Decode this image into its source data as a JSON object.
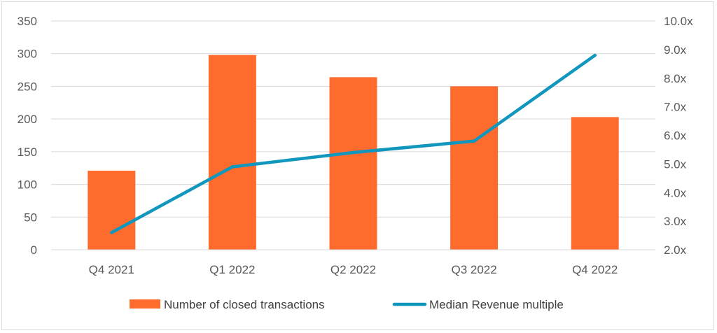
{
  "chart_data": {
    "type": "bar",
    "title": "",
    "xlabel": "",
    "ylabel": "",
    "categories": [
      "Q4 2021",
      "Q1 2022",
      "Q2 2022",
      "Q3 2022",
      "Q4 2022"
    ],
    "series": [
      {
        "name": "Number of closed transactions",
        "type": "bar",
        "axis": "left",
        "color": "#FF6B2C",
        "values": [
          121,
          298,
          264,
          250,
          203
        ]
      },
      {
        "name": "Median Revenue multiple",
        "type": "line",
        "axis": "right",
        "color": "#1196BE",
        "values": [
          2.6,
          4.9,
          5.4,
          5.8,
          8.8
        ]
      }
    ],
    "ylim": [
      0,
      350
    ],
    "y_ticks": [
      "0",
      "50",
      "100",
      "150",
      "200",
      "250",
      "300",
      "350"
    ],
    "y2lim": [
      2.0,
      10.0
    ],
    "y2_ticks": [
      "2.0x",
      "3.0x",
      "4.0x",
      "5.0x",
      "6.0x",
      "7.0x",
      "8.0x",
      "9.0x",
      "10.0x"
    ],
    "grid": "horizontal",
    "legend_position": "bottom"
  }
}
